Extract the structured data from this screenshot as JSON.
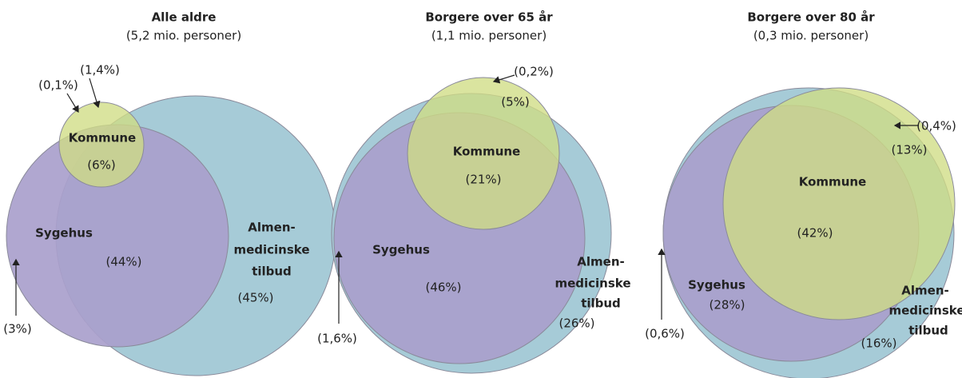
{
  "panels": [
    {
      "title": "Alle aldre",
      "subtitle": "(5,2 mio. personer)",
      "kommune": "Kommune",
      "sygehus": "Sygehus",
      "almen": [
        "Almen-",
        "medicinske",
        "tilbud"
      ],
      "kommune_share": "(6%)",
      "sygehus_share": "(44%)",
      "almen_share": "(45%)",
      "notes": [
        "(1,4%)",
        "(0,1%)",
        "(3%)"
      ]
    },
    {
      "title": "Borgere over 65 år",
      "subtitle": "(1,1 mio. personer)",
      "kommune": "Kommune",
      "sygehus": "Sygehus",
      "almen": [
        "Almen-",
        "medicinske",
        "tilbud"
      ],
      "kommune_share": "(21%)",
      "sygehus_share": "(46%)",
      "almen_share": "(26%)",
      "notes": [
        "(0,2%)",
        "(5%)",
        "(1,6%)"
      ]
    },
    {
      "title": "Borgere over 80 år",
      "subtitle": "(0,3 mio. personer)",
      "kommune": "Kommune",
      "sygehus": "Sygehus",
      "almen": [
        "Almen-",
        "medicinske",
        "tilbud"
      ],
      "kommune_share": "(42%)",
      "sygehus_share": "(28%)",
      "almen_share": "(16%)",
      "notes": [
        "(0,4%)",
        "(13%)",
        "(0,6%)"
      ]
    }
  ]
}
